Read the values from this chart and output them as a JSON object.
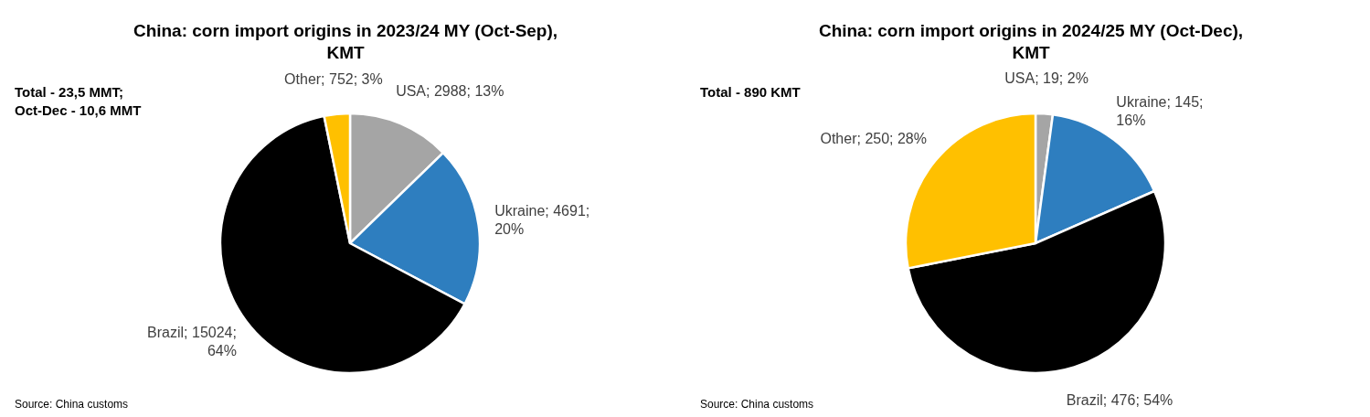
{
  "chart_data": [
    {
      "type": "pie",
      "title": "China: corn import origins in 2023/24 MY (Oct-Sep), KMT",
      "categories": [
        "USA",
        "Ukraine",
        "Brazil",
        "Other"
      ],
      "values": [
        2988,
        4691,
        15024,
        752
      ],
      "colors": [
        "#a5a5a5",
        "#2e7ebf",
        "#000000",
        "#ffc000"
      ],
      "value_labels": [
        "2988; 13%",
        "4691; 20%",
        "15024; 64%",
        "752; 3%"
      ],
      "annotations": [
        "Total - 23,5 MMT; Oct-Dec - 10,6 MMT",
        "Source: China customs"
      ]
    },
    {
      "type": "pie",
      "title": "China: corn import origins in 2024/25 MY (Oct-Dec), KMT",
      "categories": [
        "USA",
        "Ukraine",
        "Brazil",
        "Other"
      ],
      "values": [
        19,
        145,
        476,
        250
      ],
      "colors": [
        "#a5a5a5",
        "#2e7ebf",
        "#000000",
        "#ffc000"
      ],
      "value_labels": [
        "19; 2%",
        "145; 16%",
        "476; 54%",
        "250; 28%"
      ],
      "annotations": [
        "Total - 890 KMT",
        "Source: China customs"
      ]
    }
  ]
}
